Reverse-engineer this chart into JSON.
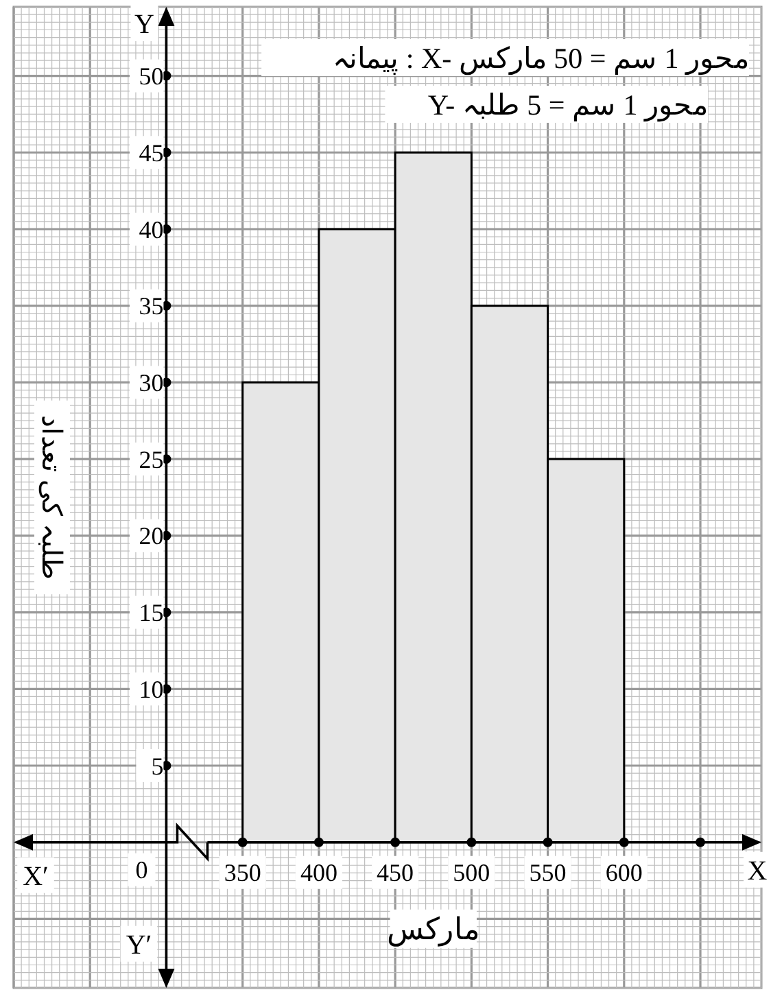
{
  "chart_data": {
    "type": "histogram",
    "xlabel": "مارکس",
    "ylabel": "طلبہ کی تعداد",
    "bins": [
      350,
      400,
      450,
      500,
      550,
      600
    ],
    "values": [
      30,
      40,
      45,
      35,
      25
    ],
    "color": "#e6e6e6",
    "xlim": [
      200,
      690
    ],
    "ylim": [
      -9.5,
      54.5
    ],
    "xticks": [
      350,
      400,
      450,
      500,
      550,
      600,
      {
        "value": 650,
        "label": null
      }
    ],
    "yticks": [
      5,
      10,
      15,
      20,
      25,
      30,
      35,
      40,
      45,
      50
    ],
    "grid": true,
    "annotations": [
      "پیمانہ : X- محور 1 سم = 50 مارکس",
      "Y- محور 1 سم = 5 طلبہ",
      "0",
      "X",
      "X′",
      "Y",
      "Y′"
    ]
  }
}
